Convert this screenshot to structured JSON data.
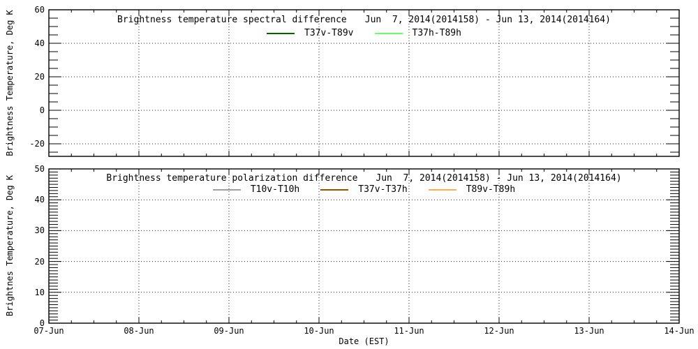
{
  "figure": {
    "background": "#ffffff",
    "text_color": "#000000",
    "xlabel": "Date (EST)"
  },
  "chart_data": [
    {
      "type": "line",
      "title": "Brightness temperature spectral difference",
      "date_range": "Jun  7, 2014(2014158) - Jun 13, 2014(2014164)",
      "ylabel": "Brightness Temperature, Deg K",
      "xlabel": "Date (EST)",
      "ylim": [
        -27.5,
        60
      ],
      "y_major_ticks": [
        60,
        40,
        20,
        0,
        -20
      ],
      "y_minor_step": 5,
      "x_categories": [
        "07-Jun",
        "08-Jun",
        "09-Jun",
        "10-Jun",
        "11-Jun",
        "12-Jun",
        "13-Jun",
        "14-Jun"
      ],
      "x_minor_per_major": 4,
      "grid": "dotted",
      "legend_position": "top-center-inside",
      "series_data_visible": false,
      "series": [
        {
          "name": "T37v-T89v",
          "color": "#006400",
          "x": [],
          "y": []
        },
        {
          "name": "T37h-T89h",
          "color": "#66ff66",
          "x": [],
          "y": []
        }
      ]
    },
    {
      "type": "line",
      "title": "Brightness temperature polarization difference",
      "date_range": "Jun  7, 2014(2014158) - Jun 13, 2014(2014164)",
      "ylabel": "Brightnes Temperature, Deg K",
      "xlabel": "Date (EST)",
      "ylim": [
        0,
        50
      ],
      "y_major_ticks": [
        50,
        40,
        30,
        20,
        10,
        0
      ],
      "y_minor_step": 1,
      "x_categories": [
        "07-Jun",
        "08-Jun",
        "09-Jun",
        "10-Jun",
        "11-Jun",
        "12-Jun",
        "13-Jun",
        "14-Jun"
      ],
      "x_minor_per_major": 4,
      "grid": "dotted",
      "legend_position": "top-center-inside",
      "series_data_visible": false,
      "series": [
        {
          "name": "T10v-T10h",
          "color": "#a0a0a0",
          "x": [],
          "y": []
        },
        {
          "name": "T37v-T37h",
          "color": "#994d00",
          "x": [],
          "y": []
        },
        {
          "name": "T89v-T89h",
          "color": "#ffaa55",
          "x": [],
          "y": []
        }
      ]
    }
  ]
}
